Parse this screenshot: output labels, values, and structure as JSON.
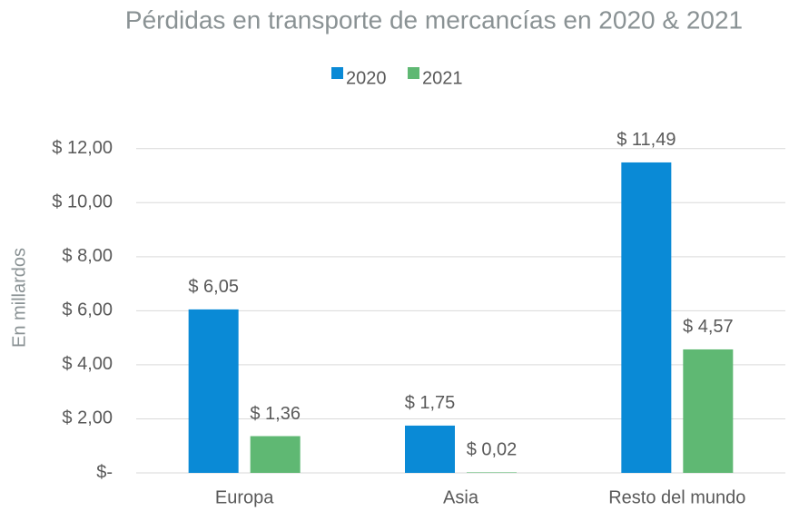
{
  "chart_data": {
    "type": "bar",
    "title": "Pérdidas en transporte de mercancías en 2020 & 2021",
    "y_label": "En millardos",
    "categories": [
      "Europa",
      "Asia",
      "Resto del mundo"
    ],
    "series": [
      {
        "name": "2020",
        "color": "#0a8ad6",
        "values": [
          6.05,
          1.75,
          11.49
        ],
        "value_labels": [
          "$ 6,05",
          "$ 1,75",
          "$ 11,49"
        ]
      },
      {
        "name": "2021",
        "color": "#5fb873",
        "values": [
          1.36,
          0.02,
          4.57
        ],
        "value_labels": [
          "$ 1,36",
          "$ 0,02",
          "$ 4,57"
        ]
      }
    ],
    "ylim": [
      0,
      13
    ],
    "yticks": [
      {
        "value": 0,
        "label": "$-"
      },
      {
        "value": 2,
        "label": "$ 2,00"
      },
      {
        "value": 4,
        "label": "$ 4,00"
      },
      {
        "value": 6,
        "label": "$ 6,00"
      },
      {
        "value": 8,
        "label": "$ 8,00"
      },
      {
        "value": 10,
        "label": "$ 10,00"
      },
      {
        "value": 12,
        "label": "$ 12,00"
      }
    ],
    "grid": true,
    "legend": "top"
  }
}
